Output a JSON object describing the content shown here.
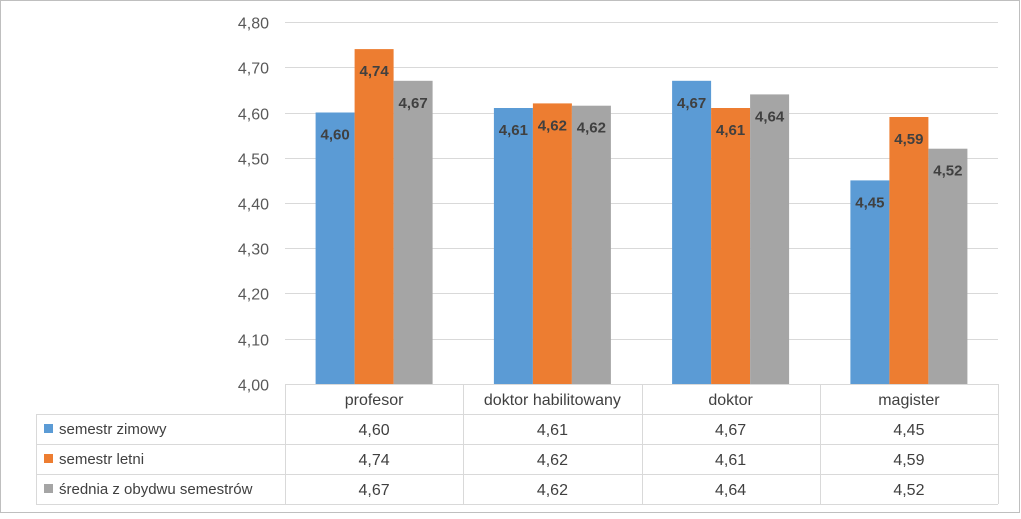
{
  "chart_data": {
    "type": "bar",
    "categories": [
      "profesor",
      "doktor habilitowany",
      "doktor",
      "magister"
    ],
    "series": [
      {
        "name": "semestr zimowy",
        "values": [
          4.6,
          4.61,
          4.67,
          4.45
        ],
        "labels": [
          "4,60",
          "4,61",
          "4,67",
          "4,45"
        ],
        "color": "#5B9BD5"
      },
      {
        "name": "semestr letni",
        "values": [
          4.74,
          4.62,
          4.61,
          4.59
        ],
        "labels": [
          "4,74",
          "4,62",
          "4,61",
          "4,59"
        ],
        "color": "#ED7D31"
      },
      {
        "name": "średnia z obydwu semestrów",
        "values": [
          4.67,
          4.615,
          4.64,
          4.52
        ],
        "labels": [
          "4,67",
          "4,62",
          "4,64",
          "4,52"
        ],
        "color": "#A5A5A5"
      }
    ],
    "ylim": [
      4.0,
      4.8
    ],
    "yticks": [
      4.0,
      4.1,
      4.2,
      4.3,
      4.4,
      4.5,
      4.6,
      4.7,
      4.8
    ],
    "ytick_labels": [
      "4,00",
      "4,10",
      "4,20",
      "4,30",
      "4,40",
      "4,50",
      "4,60",
      "4,70",
      "4,80"
    ],
    "grid": true,
    "data_table": true,
    "title": "",
    "xlabel": "",
    "ylabel": ""
  }
}
